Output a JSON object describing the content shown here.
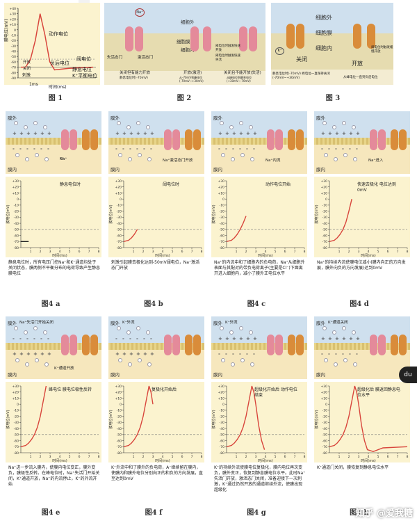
{
  "fig1": {
    "caption": "图 1",
    "ylabel": "膜电位(mV)",
    "xlabel": "时间(ms)",
    "scale_bar": "1ms",
    "yticks": [
      "+40",
      "+30",
      "+20",
      "+10",
      "0",
      "-10",
      "-20",
      "-30",
      "-40",
      "-50",
      "-60",
      "-70",
      "-80",
      "-90"
    ],
    "labels": {
      "ap": "动作电位",
      "threshold": "阈电位",
      "negative": "负后电位",
      "resting": "静息电位",
      "k_eq": "K⁺平衡电位",
      "stimulus": "刺激",
      "open": "开放",
      "close": "关闭"
    },
    "chart_data": {
      "type": "line",
      "x_unit": "ms",
      "y_unit": "mV",
      "ylim": [
        -90,
        40
      ],
      "series": [
        {
          "values": [
            [
              0,
              -70
            ],
            [
              0.2,
              -70
            ],
            [
              0.4,
              -55
            ],
            [
              0.6,
              -20
            ],
            [
              0.8,
              30
            ],
            [
              1.0,
              -10
            ],
            [
              1.2,
              -60
            ],
            [
              1.4,
              -75
            ],
            [
              2.0,
              -72
            ],
            [
              3.0,
              -70
            ]
          ]
        }
      ]
    }
  },
  "fig2": {
    "caption": "图 2",
    "outside": "细胞外",
    "membrane": "细胞膜",
    "inside": "细胞内",
    "na": "Na⁺",
    "labels": {
      "inactivation_gate": "失活态门",
      "activation_gate": "激活态门",
      "threshold_open": "阈电位时触发快速开放",
      "threshold_close": "阈电位时触发快速失活"
    },
    "states": [
      {
        "name": "关闭但有能力开放",
        "note": "静息电位时(-70mV)"
      },
      {
        "name": "开放(激活)",
        "note": "从-70mV到峰电位 (-70mV~+30mV)"
      },
      {
        "name": "关闭且不能开放(失活)",
        "note": "从峰电位到静息电位 (+30mV~-70mV)"
      }
    ]
  },
  "fig3": {
    "caption": "图 3",
    "outside": "细胞外",
    "membrane": "细胞膜",
    "inside": "细胞内",
    "k": "K⁺",
    "close": "关闭",
    "open": "开放",
    "note_close": "静息电位时(-70mV) 峰电位一直保持关闭(-70mV~+30mV)",
    "note_open": "阈电位时触发缓慢开放",
    "note_open2": "从峰电位一直到负后电位"
  },
  "fig4": {
    "outside_label": "膜外",
    "inside_label": "膜内",
    "ylabel": "膜电位(mV)",
    "xlabel": "时间(ms)",
    "yticks": [
      "+30",
      "+20",
      "+10",
      "0",
      "-10",
      "-20",
      "-30",
      "-40",
      "-50",
      "-60",
      "-70",
      "-80"
    ],
    "xticks": [
      "1",
      "2",
      "3",
      "4",
      "5",
      "6",
      "7",
      "8"
    ],
    "threshold_mv": -50,
    "panels": [
      {
        "caption": "图4 a",
        "title": "静息电位时",
        "ion_labels": [
          "Na⁺",
          "K⁺"
        ],
        "desc": "静息电位时，所有电压门控Na⁺和K⁺通道均处于关闭状态，膜两侧不平衡分布的电荷导致产生静息膜电位",
        "chart_data": {
          "type": "line",
          "x": [
            0,
            0.8
          ],
          "values": [
            -70,
            -70
          ]
        }
      },
      {
        "caption": "图4 b",
        "title": "阈电位时",
        "ion_labels": [
          "Na⁺激活态门开放"
        ],
        "desc": "刺激引起膜去极化达到-50mV阈电位，Na⁺激活态门开放",
        "chart_data": {
          "type": "line",
          "x": [
            0,
            0.5,
            0.8,
            1.1,
            1.4
          ],
          "values": [
            -70,
            -68,
            -64,
            -58,
            -50
          ]
        }
      },
      {
        "caption": "图4 c",
        "title": "动作电位开始",
        "ion_labels": [
          "Na⁺内流"
        ],
        "desc": "Na⁺的内流中和了细胞内的负电荷，Na⁺从细胞外表面与其配对的带负电荷离子(主要是Cl⁻)下面离开进入细胞内，减小了膜外正电位水平",
        "chart_data": {
          "type": "line",
          "x": [
            0,
            0.5,
            0.8,
            1.1,
            1.4,
            1.7,
            2.0
          ],
          "values": [
            -70,
            -68,
            -64,
            -58,
            -50,
            -40,
            -28
          ]
        }
      },
      {
        "caption": "图4 d",
        "title": "快速去极化 电位达到0mV",
        "ion_labels": [
          "Na⁺进入"
        ],
        "desc": "Na⁺的持续内流使膜电位减小(膜内向正的方向发展，膜外向负的方向发展)达到0mV",
        "chart_data": {
          "type": "line",
          "x": [
            0,
            0.5,
            0.8,
            1.1,
            1.4,
            1.7,
            2.0,
            2.3
          ],
          "values": [
            -70,
            -68,
            -64,
            -58,
            -50,
            -38,
            -20,
            0
          ]
        }
      },
      {
        "caption": "图4 e",
        "title": "峰电位 膜电位极性反转",
        "ion_labels": [
          "Na⁺失活门开始关闭",
          "K⁺通道开放"
        ],
        "desc": "Na⁺进一步流入膜内，使膜内电位变正，膜外变负，膜极性反转。在峰电位时，Na⁺失活门开始关闭，K⁺通道开放，Na⁺的内流停止，K⁺的外流开始",
        "chart_data": {
          "type": "line",
          "x": [
            0,
            0.5,
            0.8,
            1.1,
            1.4,
            1.7,
            2.0,
            2.3,
            2.6
          ],
          "values": [
            -70,
            -68,
            -64,
            -58,
            -50,
            -38,
            -20,
            5,
            30
          ]
        }
      },
      {
        "caption": "图4 f",
        "title": "复极化开始后",
        "ion_labels": [
          "K⁺外流"
        ],
        "desc": "K⁺外流中和了膜外的负电荷，A⁻继续留在膜内，使膜内和膜外电位分别向正的和负的方向发展，直至达到0mV",
        "chart_data": {
          "type": "line",
          "x": [
            0,
            0.5,
            0.8,
            1.1,
            1.4,
            1.7,
            2.0,
            2.3,
            2.6,
            2.8,
            3.0
          ],
          "values": [
            -70,
            -68,
            -64,
            -58,
            -50,
            -38,
            -20,
            5,
            30,
            20,
            0
          ]
        }
      },
      {
        "caption": "图4 g",
        "title": "超级化开始后 动作电位结束",
        "ion_labels": [
          "K⁺外流"
        ],
        "desc": "K⁺的持续外流使膜电位复极化，膜内电位再次变负，膜外变正，恢复到静息膜电位水平。此时Na⁺失活门开放，激活态门关闭，准备迎接下一次刺激，K⁺通过仍然开放的通道继续外流，使膜出现超级化",
        "chart_data": {
          "type": "line",
          "x": [
            0,
            0.5,
            0.8,
            1.1,
            1.4,
            1.7,
            2.0,
            2.3,
            2.6,
            2.8,
            3.0,
            3.3,
            3.6,
            3.9
          ],
          "values": [
            -70,
            -68,
            -64,
            -58,
            -50,
            -38,
            -20,
            5,
            30,
            20,
            0,
            -35,
            -60,
            -75
          ]
        }
      },
      {
        "caption": "图4 h",
        "title": "超级化后 膜返回静息电位水平",
        "ion_labels": [
          "K⁺通道关闭"
        ],
        "desc": "K⁺通道门关闭，膜恢复到静息电位水平",
        "chart_data": {
          "type": "line",
          "x": [
            0,
            0.5,
            0.8,
            1.1,
            1.4,
            1.7,
            2.0,
            2.3,
            2.6,
            2.8,
            3.0,
            3.3,
            3.6,
            3.9,
            4.5,
            5.5,
            8.0
          ],
          "values": [
            -70,
            -68,
            -64,
            -58,
            -50,
            -38,
            -20,
            5,
            30,
            20,
            0,
            -35,
            -60,
            -75,
            -78,
            -72,
            -70
          ]
        }
      }
    ]
  },
  "watermark": "知乎 @爱我糖",
  "du_button": "du",
  "colors": {
    "panel_bg": "#fbf3cf",
    "curve": "#d8453c",
    "threshold": "#777777",
    "na_channel": "#e48a9a",
    "k_channel": "#d98c3a"
  }
}
